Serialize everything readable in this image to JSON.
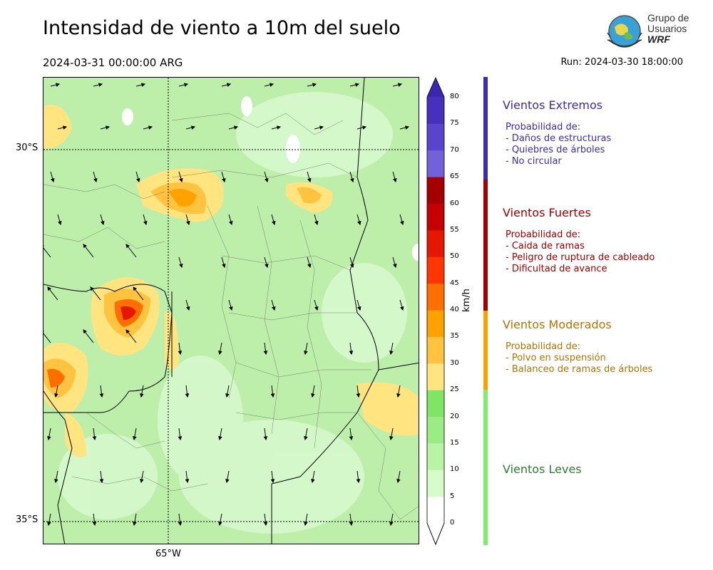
{
  "header": {
    "title": "Intensidad de viento a 10m del suelo",
    "valid_time": "2024-03-31 00:00:00 ARG",
    "run_time": "Run: 2024-03-30 18:00:00"
  },
  "logo": {
    "line1": "Grupo de",
    "line2": "Usuarios",
    "line3": "WRF"
  },
  "map": {
    "lat_labels": [
      "30°S",
      "35°S"
    ],
    "lon_labels": [
      "65°W"
    ]
  },
  "colorbar": {
    "unit": "km/h",
    "ticks": [
      "0",
      "5",
      "10",
      "15",
      "20",
      "25",
      "30",
      "35",
      "40",
      "45",
      "50",
      "55",
      "60",
      "65",
      "70",
      "75",
      "80"
    ],
    "colors": [
      "#ffffff",
      "#d4fbc8",
      "#b9f3a6",
      "#9cec86",
      "#7fe665",
      "#ffe480",
      "#ffc340",
      "#ffa200",
      "#ff6e00",
      "#ff3600",
      "#e41700",
      "#c50000",
      "#a50000",
      "#7261d8",
      "#5a44cd",
      "#4630bd",
      "#3b26b0"
    ]
  },
  "categories": [
    {
      "title": "Vientos Extremos",
      "color": "#3b2bb0",
      "lines": [
        "Probabilidad de:",
        "- Daños de estructuras",
        "- Quiebres de árboles",
        "- No circular"
      ]
    },
    {
      "title": "Vientos Fuertes",
      "color": "#a20000",
      "lines": [
        "Probabilidad de:",
        "- Caida de ramas",
        "- Peligro de ruptura de cableado",
        "- Dificultad de avance"
      ]
    },
    {
      "title": "Vientos Moderados",
      "color": "#b17300",
      "bar_color": "#ff9f00",
      "lines": [
        "Probabilidad de:",
        "- Polvo en suspensión",
        "- Balanceo de ramas de árboles"
      ]
    },
    {
      "title": "Vientos Leves",
      "color": "#2e7d32",
      "bar_color": "#7ded6e",
      "lines": []
    }
  ]
}
